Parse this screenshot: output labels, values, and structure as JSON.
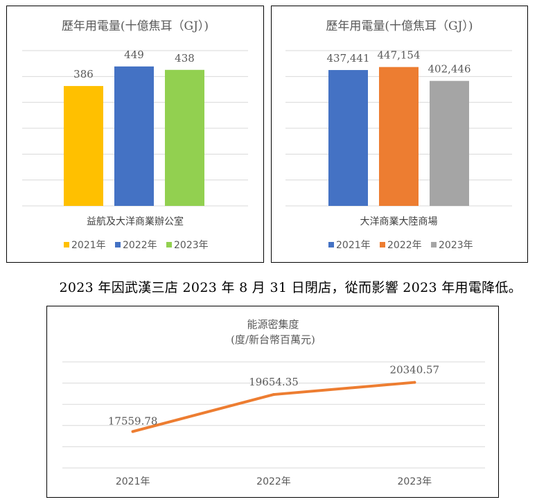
{
  "note": "2023 年因武漢三店 2023 年 8 月 31 日閉店，從而影響 2023 年用電降低。",
  "colors": {
    "y2021_a": "#FFC000",
    "y2022_a": "#4472C4",
    "y2023_a": "#92D050",
    "y2021_b": "#4472C4",
    "y2022_b": "#ED7D31",
    "y2023_b": "#A5A5A5",
    "line": "#ED7D31",
    "grid": "#D9D9D9",
    "text": "#595959"
  },
  "chart_data": [
    {
      "type": "bar",
      "title": "歷年用電量(十億焦耳（GJ）)",
      "categories": [
        "益航及大洋商業辦公室"
      ],
      "series": [
        {
          "name": "2021年",
          "values": [
            386
          ],
          "label": "386"
        },
        {
          "name": "2022年",
          "values": [
            449
          ],
          "label": "449"
        },
        {
          "name": "2023年",
          "values": [
            438
          ],
          "label": "438"
        }
      ],
      "ylim": [
        0,
        500
      ],
      "grid": true,
      "legend": "bottom"
    },
    {
      "type": "bar",
      "title": "歷年用電量(十億焦耳（GJ）)",
      "categories": [
        "大洋商業大陸商場"
      ],
      "series": [
        {
          "name": "2021年",
          "values": [
            437441
          ],
          "label": "437,441"
        },
        {
          "name": "2022年",
          "values": [
            447154
          ],
          "label": "447,154"
        },
        {
          "name": "2023年",
          "values": [
            402446
          ],
          "label": "402,446"
        }
      ],
      "ylim": [
        0,
        500000
      ],
      "grid": true,
      "legend": "bottom"
    },
    {
      "type": "line",
      "title": "能源密集度",
      "subtitle": "(度/新台幣百萬元)",
      "categories": [
        "2021年",
        "2022年",
        "2023年"
      ],
      "values": [
        17559.78,
        19654.35,
        20340.57
      ],
      "labels": [
        "17559.78",
        "19654.35",
        "20340.57"
      ],
      "ylim": [
        15500,
        21500
      ],
      "grid": true,
      "legend": "none"
    }
  ]
}
